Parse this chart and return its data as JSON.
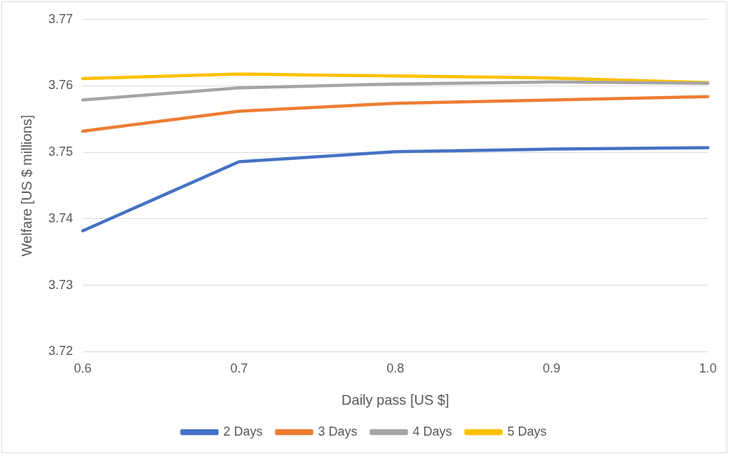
{
  "chart_data": {
    "type": "line",
    "xlabel": "Daily pass [US $]",
    "ylabel": "Welfare [US $ millions]",
    "categories": [
      "0.6",
      "0.7",
      "0.8",
      "0.9",
      "1.0"
    ],
    "series": [
      {
        "name": "2 Days",
        "color": "#4472c4",
        "values": [
          3.7382,
          3.7486,
          3.7501,
          3.7505,
          3.7507
        ]
      },
      {
        "name": "3 Days",
        "color": "#ed7d31",
        "values": [
          3.7532,
          3.7562,
          3.7574,
          3.7579,
          3.7584
        ]
      },
      {
        "name": "4 Days",
        "color": "#a5a5a5",
        "values": [
          3.7579,
          3.7597,
          3.7603,
          3.7606,
          3.7604
        ]
      },
      {
        "name": "5 Days",
        "color": "#ffc000",
        "values": [
          3.7611,
          3.7618,
          3.7615,
          3.7612,
          3.7605
        ]
      }
    ],
    "ylim": [
      3.72,
      3.77
    ],
    "yticks": [
      3.72,
      3.73,
      3.74,
      3.75,
      3.76,
      3.77
    ],
    "grid": "y",
    "legend": "bottom",
    "marker": "none",
    "line_style": "solid"
  }
}
